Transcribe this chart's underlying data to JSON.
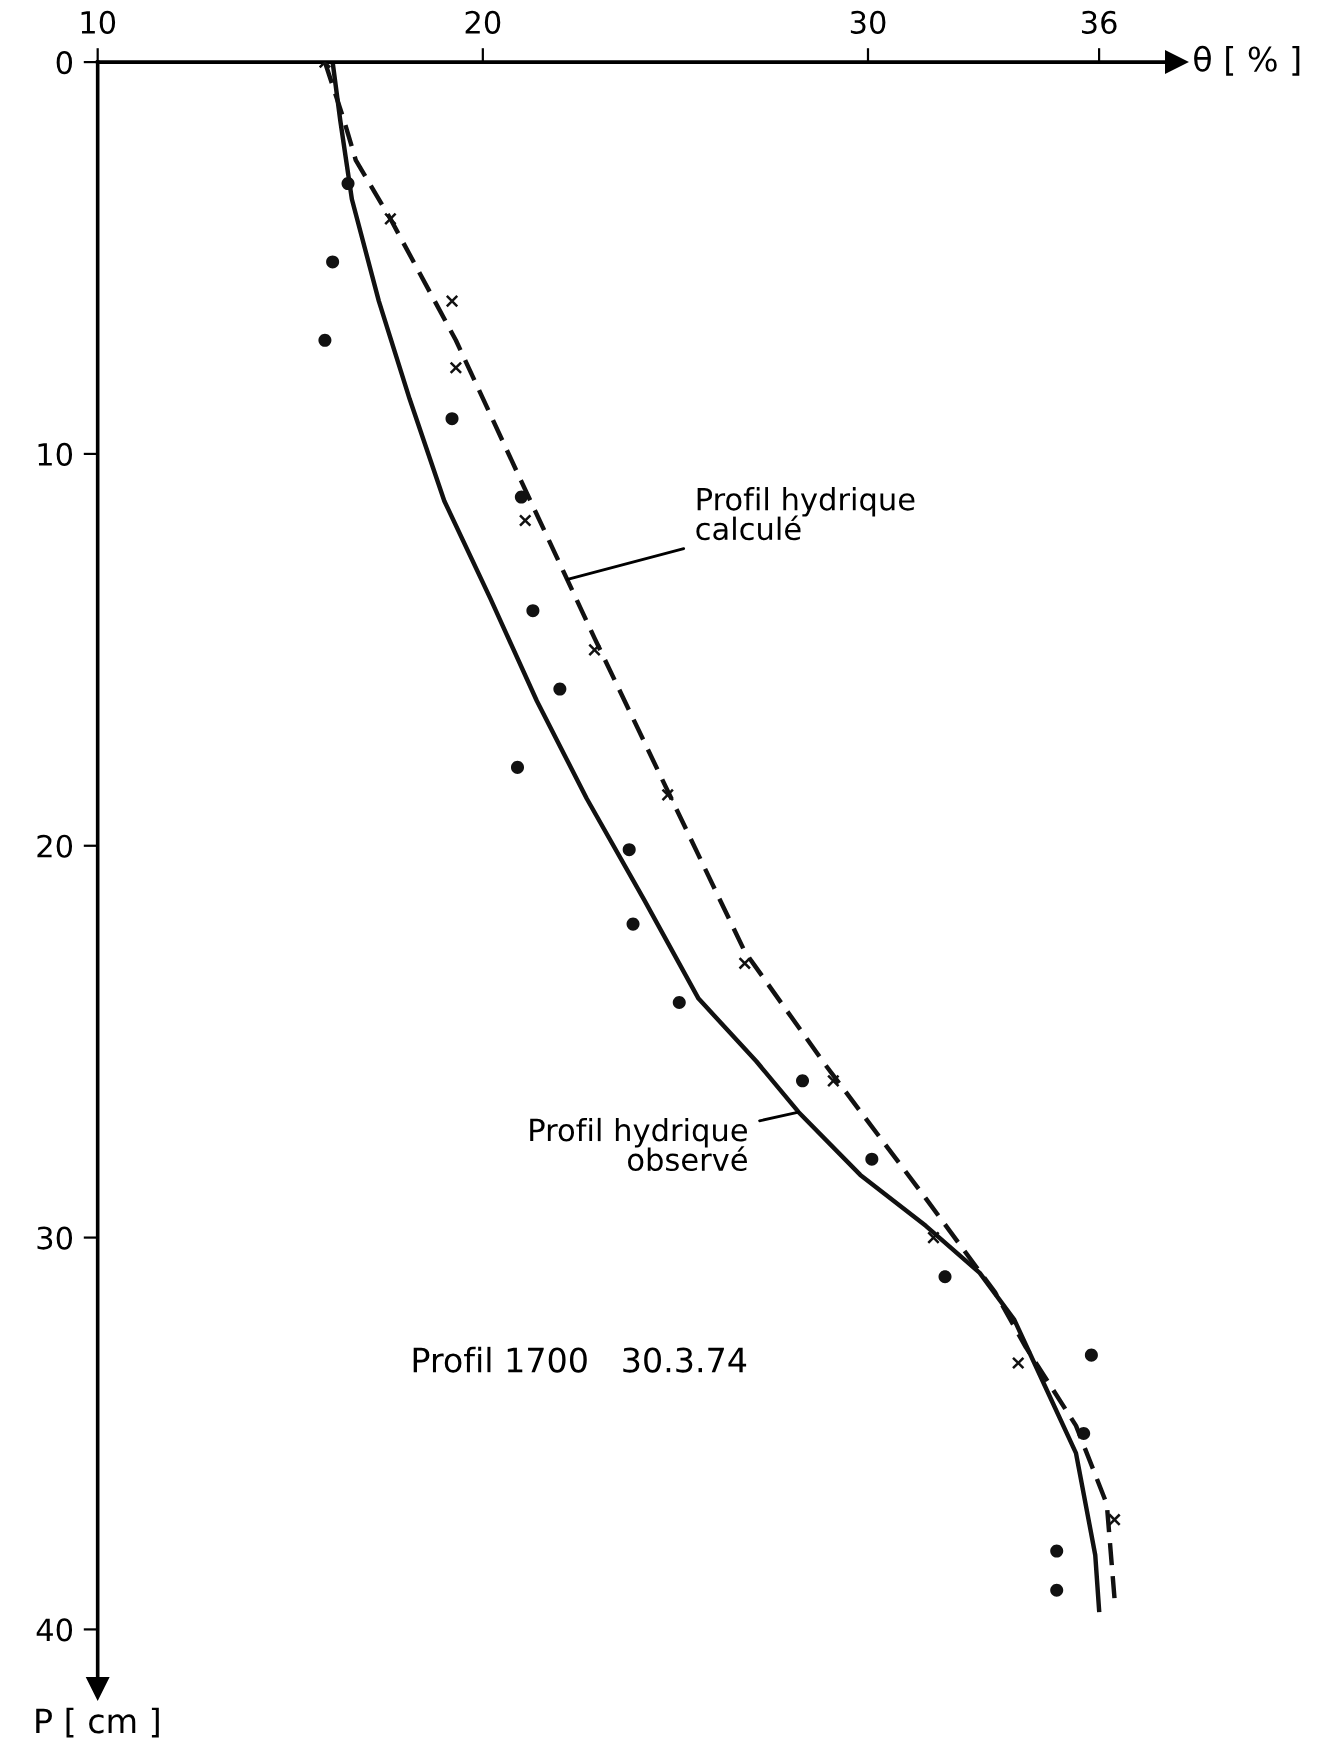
{
  "chart_data": {
    "type": "scatter",
    "xlabel": "θ [ % ]",
    "ylabel": "P [ cm ]",
    "xlim": [
      10,
      38
    ],
    "ylim": [
      41.5,
      0
    ],
    "xticks": [
      10,
      20,
      30,
      36
    ],
    "yticks": [
      0,
      10,
      20,
      30,
      40
    ],
    "grid": false,
    "legend": false,
    "series": [
      {
        "type": "line",
        "line_style": "solid",
        "marker": "none",
        "color": "#111111",
        "x": [
          16.1,
          16.3,
          16.6,
          17.3,
          18.1,
          19.0,
          20.2,
          21.4,
          22.7,
          24.2,
          25.6,
          27.1,
          28.2,
          29.8,
          31.5,
          32.9,
          33.8,
          34.6,
          35.4,
          35.9,
          36.0
        ],
        "values": [
          0,
          1.5,
          3.5,
          6.1,
          8.6,
          11.2,
          13.7,
          16.3,
          18.8,
          21.4,
          23.9,
          25.5,
          26.8,
          28.4,
          29.7,
          30.9,
          32.1,
          33.8,
          35.5,
          38.1,
          39.5
        ]
      },
      {
        "type": "line",
        "line_style": "dashed",
        "marker": "none",
        "color": "#111111",
        "x": [
          15.9,
          16.4,
          16.7,
          17.6,
          19.3,
          21.0,
          22.9,
          24.8,
          26.8,
          28.9,
          31.5,
          33.3,
          34.1,
          35.4,
          36.2,
          36.4
        ],
        "values": [
          0,
          1.5,
          2.5,
          4.0,
          7.1,
          10.7,
          14.7,
          18.6,
          22.7,
          25.6,
          29.0,
          31.4,
          32.8,
          34.8,
          36.8,
          39.2
        ]
      },
      {
        "marker": "circle",
        "color": "#111111",
        "x": [
          16.5,
          16.1,
          15.9,
          19.2,
          21.0,
          21.3,
          22.0,
          20.9,
          23.8,
          23.9,
          25.1,
          28.3,
          30.1,
          32.0,
          35.8,
          35.6,
          34.9,
          34.9
        ],
        "values": [
          3.1,
          5.1,
          7.1,
          9.1,
          11.1,
          14.0,
          16.0,
          18.0,
          20.1,
          22.0,
          24.0,
          26.0,
          28.0,
          31.0,
          33.0,
          35.0,
          38.0,
          39.0
        ]
      },
      {
        "marker": "cross",
        "color": "#111111",
        "x": [
          15.9,
          17.6,
          19.2,
          19.3,
          21.1,
          22.9,
          24.8,
          26.8,
          29.1,
          31.7,
          33.9,
          36.4
        ],
        "values": [
          0,
          4.0,
          6.1,
          7.8,
          11.7,
          15.0,
          18.7,
          23.0,
          26.0,
          30.0,
          33.2,
          37.2
        ]
      }
    ],
    "annotations": [
      {
        "text": "Profil hydrique\ncalculé",
        "x": 22.2,
        "y": 13.2
      },
      {
        "text": "Profil hydrique\nobservé",
        "x": 28.2,
        "y": 26.8
      },
      "Profil 1700   30.3.74"
    ]
  }
}
